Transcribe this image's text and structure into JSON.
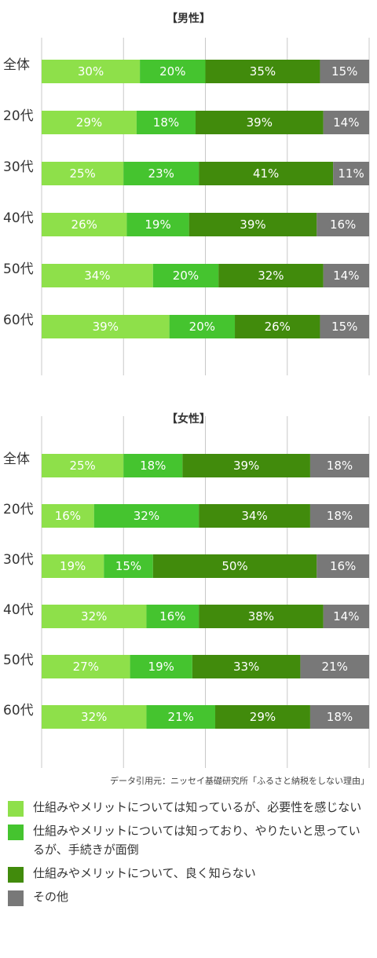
{
  "chart_data": [
    {
      "type": "bar",
      "orientation": "horizontal-stacked",
      "title": "【男性】",
      "categories": [
        "全体",
        "20代",
        "30代",
        "40代",
        "50代",
        "60代"
      ],
      "series": [
        {
          "name": "仕組みやメリットについては知っているが、必要性を感じない",
          "values": [
            30,
            29,
            25,
            26,
            34,
            39
          ]
        },
        {
          "name": "仕組みやメリットについては知っており、やりたいと思っているが、手続きが面倒",
          "values": [
            20,
            18,
            23,
            19,
            20,
            20
          ]
        },
        {
          "name": "仕組みやメリットについて、良く知らない",
          "values": [
            35,
            39,
            41,
            39,
            32,
            26
          ]
        },
        {
          "name": "その他",
          "values": [
            15,
            14,
            11,
            16,
            14,
            15
          ]
        }
      ],
      "xlim": [
        0,
        100
      ],
      "grid": true,
      "value_suffix": "%"
    },
    {
      "type": "bar",
      "orientation": "horizontal-stacked",
      "title": "【女性】",
      "categories": [
        "全体",
        "20代",
        "30代",
        "40代",
        "50代",
        "60代"
      ],
      "series": [
        {
          "name": "仕組みやメリットについては知っているが、必要性を感じない",
          "values": [
            25,
            16,
            19,
            32,
            27,
            32
          ]
        },
        {
          "name": "仕組みやメリットについては知っており、やりたいと思っているが、手続きが面倒",
          "values": [
            18,
            32,
            15,
            16,
            19,
            21
          ]
        },
        {
          "name": "仕組みやメリットについて、良く知らない",
          "values": [
            39,
            34,
            50,
            38,
            33,
            29
          ]
        },
        {
          "name": "その他",
          "values": [
            18,
            18,
            16,
            14,
            21,
            18
          ]
        }
      ],
      "xlim": [
        0,
        100
      ],
      "grid": true,
      "value_suffix": "%"
    }
  ],
  "colors": [
    "#8ee04a",
    "#45c42f",
    "#418b0c",
    "#787878"
  ],
  "grid_color": "#c8c8c8",
  "source": "データ引用元：ニッセイ基礎研究所「ふるさと納税をしない理由」",
  "legend": [
    {
      "label": "仕組みやメリットについては知っているが、必要性を感じない",
      "color": "#8ee04a"
    },
    {
      "label": "仕組みやメリットについては知っており、やりたいと思っているが、手続きが面倒",
      "color": "#45c42f"
    },
    {
      "label": "仕組みやメリットについて、良く知らない",
      "color": "#418b0c"
    },
    {
      "label": "その他",
      "color": "#787878"
    }
  ]
}
